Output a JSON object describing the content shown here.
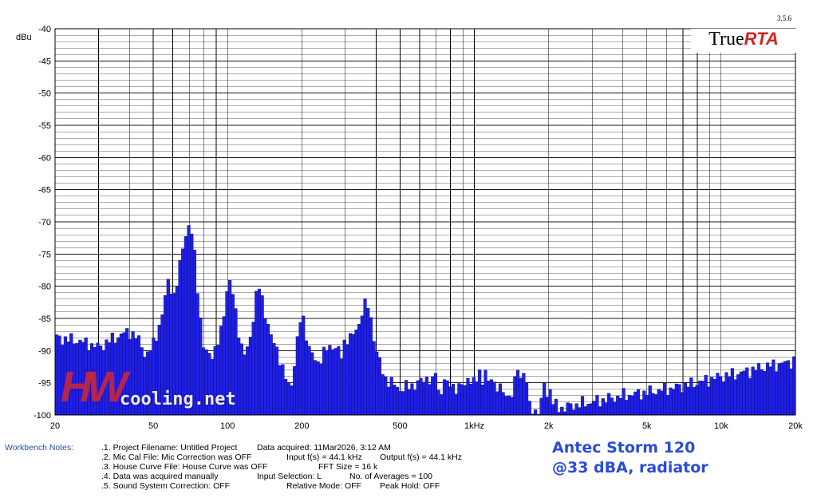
{
  "chart_data": {
    "type": "bar",
    "version": "3.5.6",
    "brand": {
      "true": "True",
      "rta": "RTA"
    },
    "ylabel": "dBu",
    "ylim": [
      -100,
      -40
    ],
    "y_ticks": [
      -40,
      -45,
      -50,
      -55,
      -60,
      -65,
      -70,
      -75,
      -80,
      -85,
      -90,
      -95,
      -100
    ],
    "xlim": [
      20,
      20000
    ],
    "x_scale": "log",
    "x_tick_labels": [
      {
        "label": "20",
        "value": 20
      },
      {
        "label": "50",
        "value": 50
      },
      {
        "label": "100",
        "value": 100
      },
      {
        "label": "200",
        "value": 200
      },
      {
        "label": "500",
        "value": 500
      },
      {
        "label": "1kHz",
        "value": 1000
      },
      {
        "label": "2k",
        "value": 2000
      },
      {
        "label": "5k",
        "value": 5000
      },
      {
        "label": "10k",
        "value": 10000
      },
      {
        "label": "20k",
        "value": 20000
      }
    ],
    "grid": true,
    "bar_color": "#2020e8",
    "bar_edge_color": "#000060",
    "series": [
      {
        "points": [
          [
            20,
            -88
          ],
          [
            25,
            -88.5
          ],
          [
            30,
            -89.5
          ],
          [
            35,
            -88
          ],
          [
            40,
            -87
          ],
          [
            44,
            -88.5
          ],
          [
            47,
            -91
          ],
          [
            50,
            -89
          ],
          [
            53,
            -86
          ],
          [
            55,
            -84
          ],
          [
            57,
            -79
          ],
          [
            59,
            -80
          ],
          [
            61,
            -82
          ],
          [
            63,
            -79
          ],
          [
            65,
            -75
          ],
          [
            67,
            -72
          ],
          [
            70,
            -71
          ],
          [
            72,
            -72
          ],
          [
            74,
            -76
          ],
          [
            76,
            -81
          ],
          [
            78,
            -86
          ],
          [
            80,
            -90
          ],
          [
            85,
            -90.5
          ],
          [
            90,
            -90
          ],
          [
            93,
            -88
          ],
          [
            96,
            -85
          ],
          [
            98,
            -82
          ],
          [
            100,
            -80
          ],
          [
            103,
            -79.5
          ],
          [
            106,
            -82
          ],
          [
            110,
            -86
          ],
          [
            114,
            -89.5
          ],
          [
            118,
            -91
          ],
          [
            122,
            -89
          ],
          [
            126,
            -86
          ],
          [
            130,
            -82
          ],
          [
            134,
            -80
          ],
          [
            138,
            -82
          ],
          [
            142,
            -84
          ],
          [
            146,
            -86
          ],
          [
            150,
            -88
          ],
          [
            160,
            -90
          ],
          [
            170,
            -94
          ],
          [
            180,
            -96
          ],
          [
            190,
            -90
          ],
          [
            196,
            -86
          ],
          [
            200,
            -84
          ],
          [
            205,
            -86
          ],
          [
            215,
            -90
          ],
          [
            230,
            -92
          ],
          [
            250,
            -90
          ],
          [
            270,
            -89
          ],
          [
            290,
            -91
          ],
          [
            300,
            -88
          ],
          [
            320,
            -88
          ],
          [
            340,
            -86
          ],
          [
            355,
            -83
          ],
          [
            370,
            -83
          ],
          [
            385,
            -86
          ],
          [
            400,
            -90
          ],
          [
            430,
            -94
          ],
          [
            460,
            -95
          ],
          [
            500,
            -96
          ],
          [
            550,
            -95.5
          ],
          [
            600,
            -95
          ],
          [
            650,
            -94
          ],
          [
            700,
            -96
          ],
          [
            750,
            -96.5
          ],
          [
            800,
            -95
          ],
          [
            850,
            -96
          ],
          [
            900,
            -95.5
          ],
          [
            950,
            -94
          ],
          [
            1000,
            -95.5
          ],
          [
            1050,
            -93
          ],
          [
            1100,
            -96
          ],
          [
            1200,
            -95
          ],
          [
            1300,
            -96.5
          ],
          [
            1400,
            -97
          ],
          [
            1500,
            -96
          ],
          [
            1550,
            -94
          ],
          [
            1600,
            -97
          ],
          [
            1700,
            -99
          ],
          [
            1800,
            -99.5
          ],
          [
            1900,
            -98
          ],
          [
            2000,
            -96.5
          ],
          [
            2100,
            -98.5
          ],
          [
            2300,
            -99
          ],
          [
            2500,
            -98.5
          ],
          [
            3000,
            -98
          ],
          [
            3500,
            -97.5
          ],
          [
            4000,
            -97
          ],
          [
            5000,
            -96.5
          ],
          [
            6000,
            -96
          ],
          [
            7000,
            -95.5
          ],
          [
            8000,
            -95
          ],
          [
            10000,
            -94
          ],
          [
            12000,
            -93.5
          ],
          [
            15000,
            -92.5
          ],
          [
            18000,
            -92
          ],
          [
            20000,
            -91.5
          ]
        ],
        "spikes": [
          [
            700,
            -93.5
          ],
          [
            755,
            -94.5
          ],
          [
            1100,
            -93
          ],
          [
            1180,
            -94.5
          ],
          [
            1460,
            -94
          ],
          [
            1490,
            -93
          ],
          [
            1600,
            -93.5
          ],
          [
            1650,
            -95
          ],
          [
            1900,
            -95
          ],
          [
            2050,
            -96
          ]
        ]
      }
    ]
  },
  "footer": {
    "workbench_label": "Workbench Notes:",
    "lines": [
      {
        "c1": ".1. Project Filename: Untitled Project",
        "c2": "Data acquired: 11Mar2026, 3:12 AM",
        "c3": "",
        "c4": ""
      },
      {
        "c1": ".2. Mic Cal File: Mic Correction was OFF",
        "c2": "",
        "c3": "Input f(s) = 44.1 kHz",
        "c4": "Output f(s) = 44.1 kHz"
      },
      {
        "c1": ".3. House Curve File: House Curve was OFF",
        "c2": "",
        "c3": "FFT Size = 16 k",
        "c4": ""
      },
      {
        "c1": ".4. Data was acquired manually",
        "c2": "Input Selection: L",
        "c3": "",
        "c4": "No. of Averages = 100"
      },
      {
        "c1": ".5. Sound System Correction: OFF",
        "c2": "",
        "c3": "Relative Mode:  OFF",
        "c4": "Peak Hold:  OFF"
      }
    ],
    "caption_line1": "Antec Storm 120",
    "caption_line2": "@33 dBA, radiator"
  },
  "watermark": {
    "hw": "HW",
    "net": "cooling.net"
  }
}
